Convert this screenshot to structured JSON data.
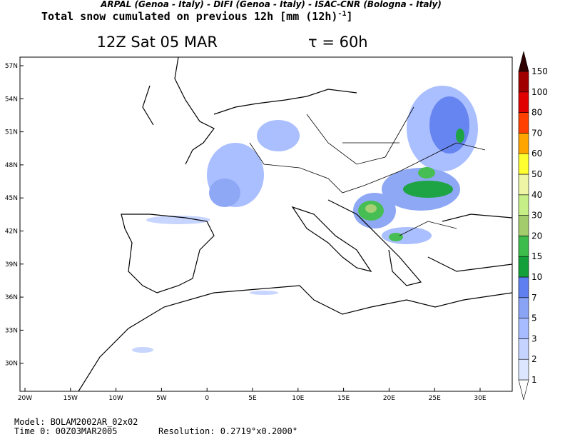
{
  "header": {
    "credits": "ARPAL (Genoa - Italy)  -  DIFI (Genoa - Italy)  -  ISAC-CNR (Bologna - Italy)",
    "field": "Total snow cumulated on previous 12h [mm (12h)",
    "field_exponent": "-1",
    "field_close": "]",
    "title": "12Z Sat 05 MAR",
    "tau": "τ = 60h"
  },
  "map": {
    "lat_labels": [
      "57N",
      "54N",
      "51N",
      "48N",
      "45N",
      "42N",
      "39N",
      "36N",
      "33N",
      "30N"
    ],
    "lon_labels": [
      "20W",
      "15W",
      "10W",
      "5W",
      "0",
      "5E",
      "10E",
      "15E",
      "20E",
      "25E",
      "30E"
    ]
  },
  "colorbar": {
    "levels": [
      "1",
      "2",
      "3",
      "5",
      "7",
      "10",
      "15",
      "20",
      "30",
      "40",
      "50",
      "60",
      "70",
      "80",
      "100",
      "150"
    ],
    "colors": [
      "#ffffff",
      "#dde6ff",
      "#c4d3ff",
      "#a6bcff",
      "#8aa4f5",
      "#5f7ff0",
      "#13a03a",
      "#3dbb4b",
      "#a3cd6c",
      "#c6ef88",
      "#eef6a6",
      "#ffff30",
      "#ffa500",
      "#ff4000",
      "#e00000",
      "#a00000",
      "#300000"
    ]
  },
  "footer": {
    "model": "Model: BOLAM2002AR_02x02",
    "time": "Time 0: 00Z03MAR2005",
    "resolution": "Resolution: 0.2719°x0.2000°"
  }
}
